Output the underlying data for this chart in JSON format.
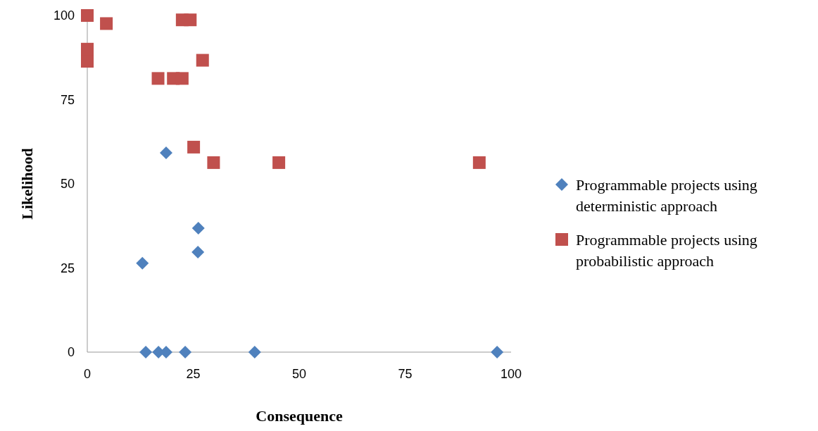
{
  "chart_data": {
    "type": "scatter",
    "xlabel": "Consequence",
    "ylabel": "Likelihood",
    "xlim": [
      0,
      100
    ],
    "xticks": [
      0,
      25,
      50,
      75,
      100
    ],
    "ylim": [
      0,
      100
    ],
    "yticks": [
      0,
      25,
      50,
      75,
      100
    ],
    "grid": false,
    "legend": "right",
    "series": [
      {
        "name": "Programmable projects using deterministic approach",
        "color": "#4f81bd",
        "marker": "diamond",
        "x": [
          18.6,
          26.2,
          26.1,
          13.0,
          13.8,
          16.8,
          18.6,
          23.1,
          39.5,
          96.7
        ],
        "values": [
          59.2,
          36.8,
          29.7,
          26.4,
          0,
          0,
          0,
          0,
          0,
          0
        ]
      },
      {
        "name": "Programmable projects using probabilistic approach",
        "color": "#c0504d",
        "marker": "square",
        "x": [
          0,
          0,
          0,
          4.5,
          22.4,
          24.3,
          27.2,
          16.7,
          20.3,
          22.4,
          25.1,
          29.8,
          45.2,
          92.5
        ],
        "values": [
          100,
          90.0,
          86.4,
          97.6,
          98.7,
          98.7,
          86.7,
          81.3,
          81.3,
          81.3,
          60.9,
          56.3,
          56.3,
          56.3
        ]
      }
    ]
  }
}
